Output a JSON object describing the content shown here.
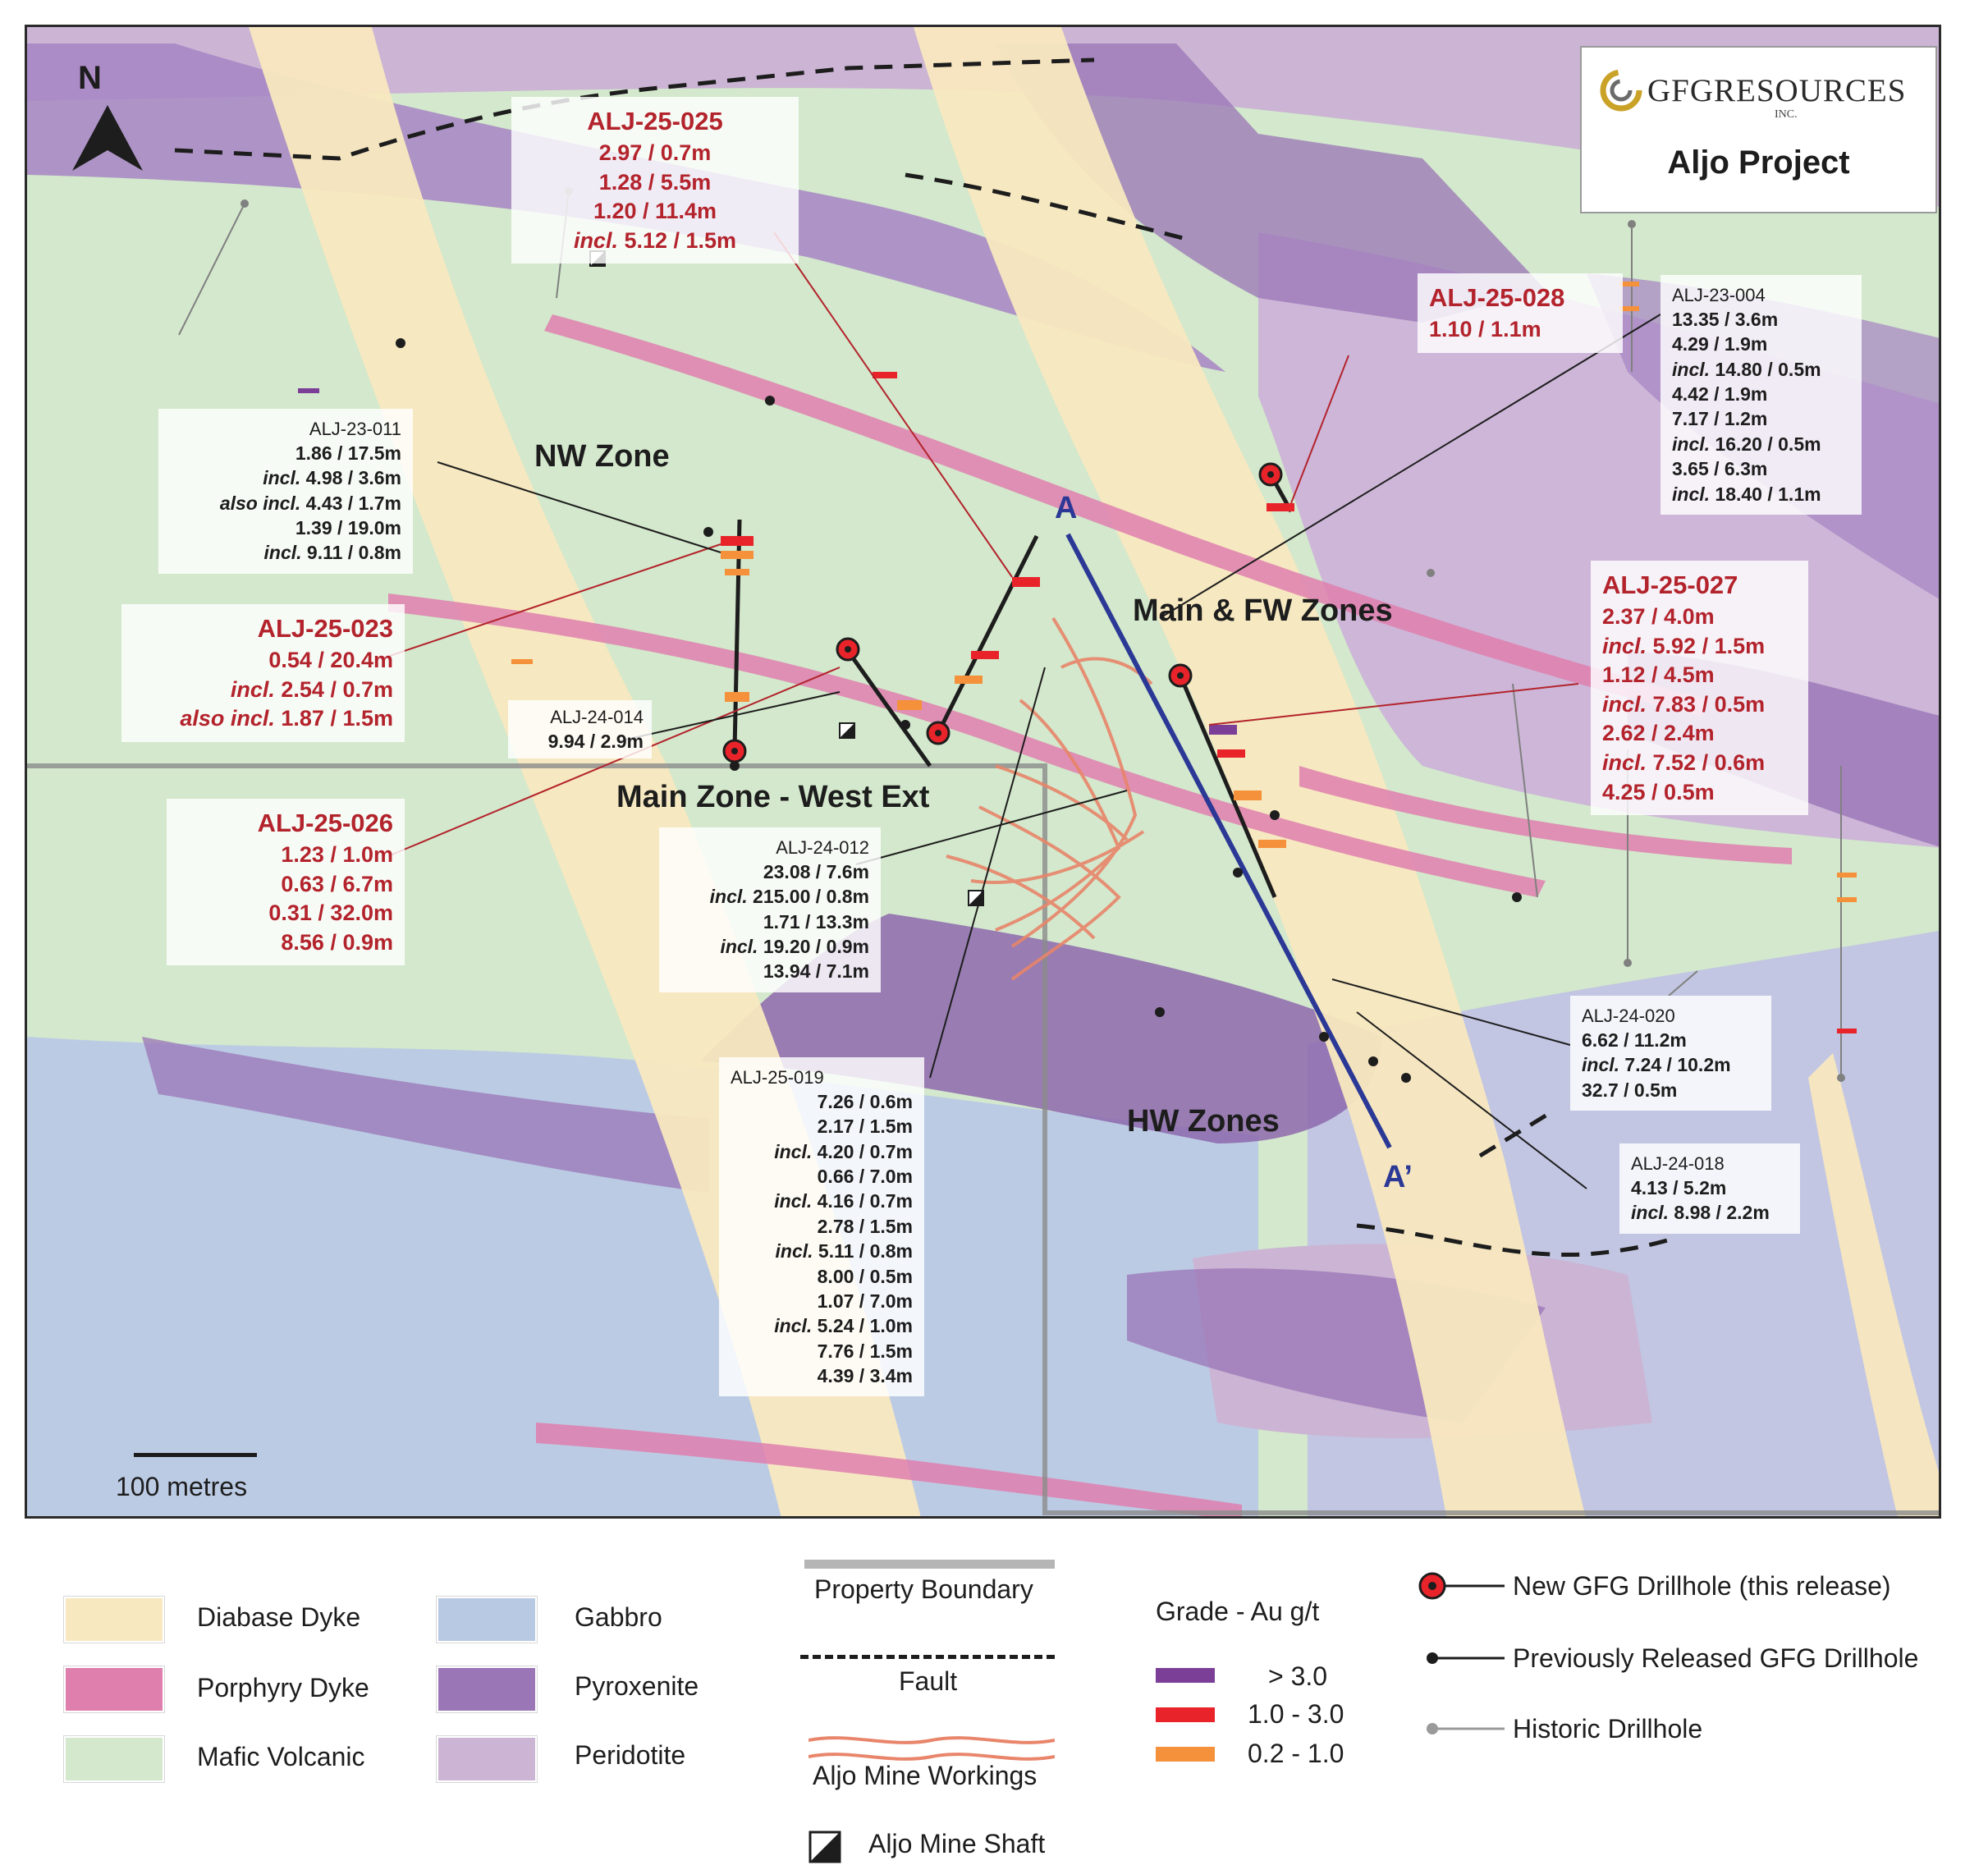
{
  "header": {
    "company": "GFGRESOURCES",
    "company_suffix": "INC.",
    "project": "Aljo Project",
    "north": "N"
  },
  "scale_bar": "100 metres",
  "zones": {
    "nw": "NW Zone",
    "main_fw": "Main & FW Zones",
    "main_west": "Main Zone - West Ext",
    "hw": "HW Zones"
  },
  "section": {
    "a": "A",
    "a_prime": "A’"
  },
  "drillholes": {
    "alj_25_025": {
      "name": "ALJ-25-025",
      "lines": [
        "2.97 / 0.7m",
        "1.28 / 5.5m",
        "1.20 / 11.4m",
        "incl. 5.12 / 1.5m"
      ]
    },
    "alj_25_028": {
      "name": "ALJ-25-028",
      "lines": [
        "1.10 / 1.1m"
      ]
    },
    "alj_23_004": {
      "name": "ALJ-23-004",
      "lines": [
        "13.35 / 3.6m",
        "4.29 / 1.9m",
        "incl. 14.80 / 0.5m",
        "4.42 / 1.9m",
        "7.17 / 1.2m",
        "incl. 16.20 / 0.5m",
        "3.65 / 6.3m",
        "incl. 18.40 / 1.1m"
      ]
    },
    "alj_23_011": {
      "name": "ALJ-23-011",
      "lines": [
        "1.86 / 17.5m",
        "incl. 4.98 / 3.6m",
        "also incl. 4.43 / 1.7m",
        "1.39 / 19.0m",
        "incl. 9.11 / 0.8m"
      ]
    },
    "alj_25_023": {
      "name": "ALJ-25-023",
      "lines": [
        "0.54 / 20.4m",
        "incl. 2.54 / 0.7m",
        "also incl. 1.87 / 1.5m"
      ]
    },
    "alj_24_014": {
      "name": "ALJ-24-014",
      "lines": [
        "9.94 / 2.9m"
      ]
    },
    "alj_25_027": {
      "name": "ALJ-25-027",
      "lines": [
        "2.37 / 4.0m",
        "incl. 5.92 / 1.5m",
        "1.12 / 4.5m",
        "incl. 7.83 / 0.5m",
        "2.62 / 2.4m",
        "incl. 7.52 / 0.6m",
        "4.25 / 0.5m"
      ]
    },
    "alj_25_026": {
      "name": "ALJ-25-026",
      "lines": [
        "1.23 / 1.0m",
        "0.63 / 6.7m",
        "0.31 / 32.0m",
        "8.56 / 0.9m"
      ]
    },
    "alj_24_012": {
      "name": "ALJ-24-012",
      "lines": [
        "23.08 / 7.6m",
        "incl. 215.00 / 0.8m",
        "1.71 / 13.3m",
        "incl. 19.20 / 0.9m",
        "13.94 / 7.1m"
      ]
    },
    "alj_24_020": {
      "name": "ALJ-24-020",
      "lines": [
        "6.62 / 11.2m",
        "incl. 7.24 / 10.2m",
        "32.7 / 0.5m"
      ]
    },
    "alj_24_018": {
      "name": "ALJ-24-018",
      "lines": [
        "4.13 / 5.2m",
        "incl. 8.98 / 2.2m"
      ]
    },
    "alj_25_019": {
      "name": "ALJ-25-019",
      "lines": [
        "7.26 / 0.6m",
        "2.17 / 1.5m",
        "incl. 4.20 / 0.7m",
        "0.66 / 7.0m",
        "incl. 4.16 / 0.7m",
        "2.78 / 1.5m",
        "incl. 5.11 / 0.8m",
        "8.00 / 0.5m",
        "1.07 / 7.0m",
        "incl. 5.24 / 1.0m",
        "7.76 / 1.5m",
        "4.39 / 3.4m"
      ]
    }
  },
  "legend": {
    "rock_units": [
      {
        "label": "Diabase Dyke",
        "color": "#f8e8bf"
      },
      {
        "label": "Porphyry Dyke",
        "color": "#df7fae"
      },
      {
        "label": "Mafic Volcanic",
        "color": "#d3e8cc"
      },
      {
        "label": "Gabbro",
        "color": "#b8c9e3"
      },
      {
        "label": "Pyroxenite",
        "color": "#9a76b7"
      },
      {
        "label": "Peridotite",
        "color": "#cbb4d4"
      }
    ],
    "property_boundary": "Property Boundary",
    "fault": "Fault",
    "mine_workings": "Aljo Mine Workings",
    "mine_shaft": "Aljo Mine Shaft",
    "grade_title": "Grade - Au g/t",
    "grades": [
      {
        "label": "> 3.0",
        "color": "#7b3f98"
      },
      {
        "label": "1.0 - 3.0",
        "color": "#e8232a"
      },
      {
        "label": "0.2 - 1.0",
        "color": "#f4913a"
      }
    ],
    "new_drillhole": "New GFG Drillhole (this release)",
    "prev_drillhole": "Previously Released GFG Drillhole",
    "historic_drillhole": "Historic Drillhole"
  }
}
